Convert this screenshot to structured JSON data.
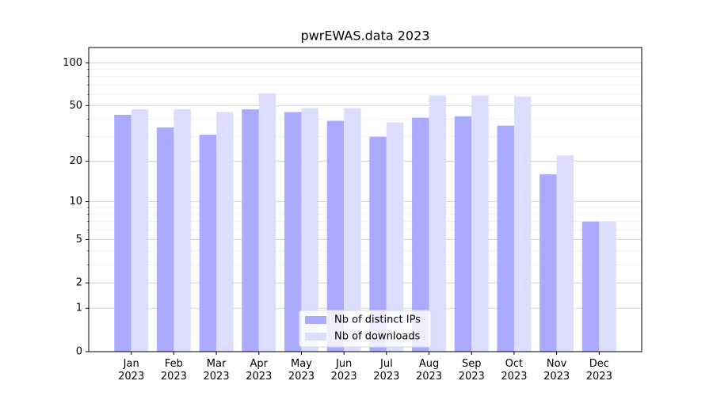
{
  "chart_data": {
    "type": "bar",
    "title": "pwrEWAS.data 2023",
    "categories": [
      "Jan\n2023",
      "Feb\n2023",
      "Mar\n2023",
      "Apr\n2023",
      "May\n2023",
      "Jun\n2023",
      "Jul\n2023",
      "Aug\n2023",
      "Sep\n2023",
      "Oct\n2023",
      "Nov\n2023",
      "Dec\n2023"
    ],
    "series": [
      {
        "name": "Nb of distinct IPs",
        "color": "#aaaaff",
        "values": [
          43,
          35,
          31,
          47,
          45,
          39,
          30,
          41,
          42,
          36,
          16,
          7
        ]
      },
      {
        "name": "Nb of downloads",
        "color": "#ddddff",
        "values": [
          47,
          47,
          45,
          61,
          48,
          48,
          38,
          59,
          59,
          58,
          22,
          7
        ]
      }
    ],
    "yscale": "log1p",
    "ylim": [
      0,
      128
    ],
    "yticks": [
      0,
      1,
      2,
      5,
      10,
      20,
      50,
      100
    ],
    "minor_yticks": [
      3,
      4,
      6,
      7,
      8,
      9,
      30,
      40,
      60,
      70,
      80,
      90
    ],
    "grid": true,
    "legend": "lower center"
  }
}
